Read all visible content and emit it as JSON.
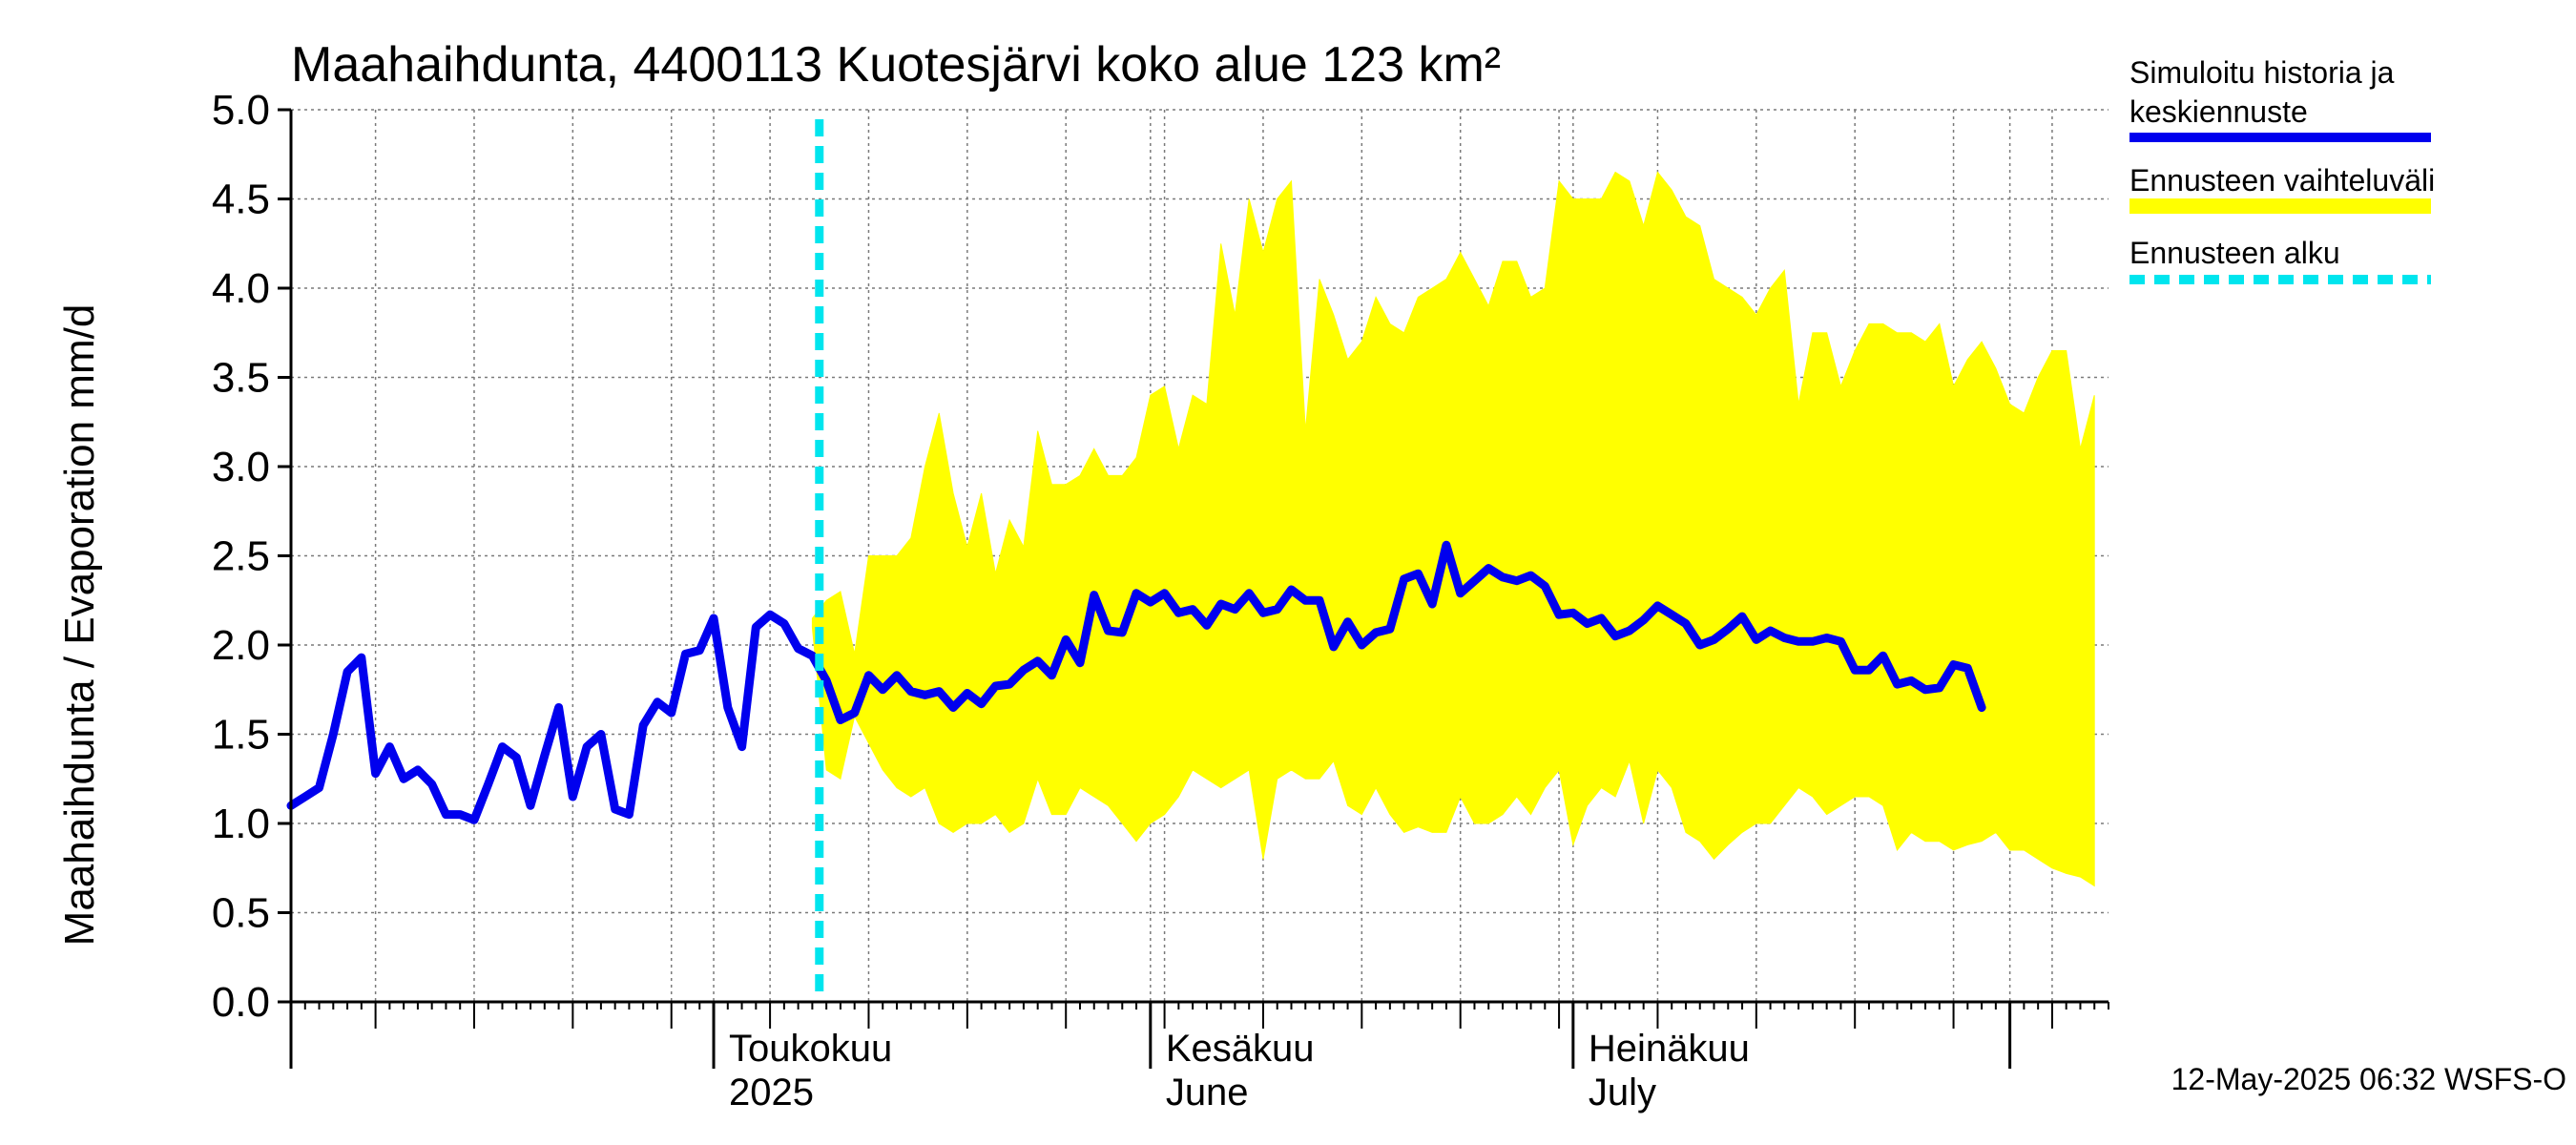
{
  "chart_data": {
    "type": "area",
    "title": "Maahaihdunta, 4400113 Kuotesjärvi koko alue 123 km²",
    "ylabel": "Maahaihdunta / Evaporation   mm/d",
    "ylim": [
      0,
      5
    ],
    "yticks": [
      "0.0",
      "0.5",
      "1.0",
      "1.5",
      "2.0",
      "2.5",
      "3.0",
      "3.5",
      "4.0",
      "4.5",
      "5.0"
    ],
    "xlim": [
      "2025-04-01",
      "2025-08-08"
    ],
    "month_labels": [
      {
        "date": "2025-05-01",
        "line1": "Toukokuu",
        "line2": "2025"
      },
      {
        "date": "2025-06-01",
        "line1": "Kesäkuu",
        "line2": "June"
      },
      {
        "date": "2025-07-01",
        "line1": "Heinäkuu",
        "line2": "July"
      }
    ],
    "forecast_start": "2025-05-08",
    "series": [
      {
        "name": "Simuloitu historia ja keskiennuste",
        "color": "#0000ee",
        "start": "2025-04-01",
        "values": [
          1.1,
          1.15,
          1.2,
          1.5,
          1.85,
          1.93,
          1.28,
          1.43,
          1.25,
          1.3,
          1.22,
          1.05,
          1.05,
          1.02,
          1.22,
          1.43,
          1.37,
          1.1,
          1.38,
          1.65,
          1.15,
          1.43,
          1.5,
          1.08,
          1.05,
          1.55,
          1.68,
          1.62,
          1.95,
          1.97,
          2.15,
          1.65,
          1.43,
          2.1,
          2.17,
          2.12,
          1.98,
          1.94,
          1.8,
          1.58,
          1.62,
          1.83,
          1.75,
          1.83,
          1.74,
          1.72,
          1.74,
          1.65,
          1.73,
          1.67,
          1.77,
          1.78,
          1.86,
          1.91,
          1.83,
          2.03,
          1.9,
          2.28,
          2.08,
          2.07,
          2.29,
          2.24,
          2.29,
          2.18,
          2.2,
          2.11,
          2.23,
          2.2,
          2.29,
          2.18,
          2.2,
          2.31,
          2.25,
          2.25,
          1.99,
          2.13,
          2.0,
          2.07,
          2.09,
          2.37,
          2.4,
          2.23,
          2.56,
          2.29,
          2.36,
          2.43,
          2.38,
          2.36,
          2.39,
          2.33,
          2.17,
          2.18,
          2.12,
          2.15,
          2.05,
          2.08,
          2.14,
          2.22,
          2.17,
          2.12,
          2.0,
          2.03,
          2.09,
          2.16,
          2.03,
          2.08,
          2.04,
          2.02,
          2.02,
          2.04,
          2.02,
          1.86,
          1.86,
          1.94,
          1.78,
          1.8,
          1.75,
          1.76,
          1.89,
          1.87,
          1.65
        ]
      }
    ],
    "band": {
      "name": "Ennusteen vaihteluväli",
      "color": "#ffff00",
      "start": "2025-05-08",
      "upper": [
        2.15,
        2.25,
        2.3,
        1.95,
        2.5,
        2.5,
        2.5,
        2.6,
        3.0,
        3.3,
        2.85,
        2.55,
        2.85,
        2.4,
        2.7,
        2.55,
        3.2,
        2.9,
        2.9,
        2.95,
        3.1,
        2.95,
        2.95,
        3.05,
        3.4,
        3.45,
        3.1,
        3.4,
        3.35,
        4.25,
        3.85,
        4.5,
        4.2,
        4.5,
        4.6,
        3.2,
        4.05,
        3.85,
        3.6,
        3.7,
        3.95,
        3.8,
        3.75,
        3.95,
        4.0,
        4.05,
        4.2,
        4.05,
        3.9,
        4.15,
        4.15,
        3.95,
        4.0,
        4.6,
        4.5,
        4.5,
        4.5,
        4.65,
        4.6,
        4.35,
        4.65,
        4.55,
        4.4,
        4.35,
        4.05,
        4.0,
        3.95,
        3.85,
        4.0,
        4.1,
        3.35,
        3.75,
        3.75,
        3.45,
        3.65,
        3.8,
        3.8,
        3.75,
        3.75,
        3.7,
        3.8,
        3.45,
        3.6,
        3.7,
        3.55,
        3.35,
        3.3,
        3.5,
        3.65,
        3.65,
        3.1,
        3.4
      ],
      "lower": [
        2.1,
        1.3,
        1.25,
        1.6,
        1.45,
        1.3,
        1.2,
        1.15,
        1.2,
        1.0,
        0.95,
        1.0,
        1.0,
        1.05,
        0.95,
        1.0,
        1.25,
        1.05,
        1.05,
        1.2,
        1.15,
        1.1,
        1.0,
        0.9,
        1.0,
        1.05,
        1.15,
        1.3,
        1.25,
        1.2,
        1.25,
        1.3,
        0.8,
        1.25,
        1.3,
        1.25,
        1.25,
        1.35,
        1.1,
        1.05,
        1.2,
        1.05,
        0.95,
        0.98,
        0.95,
        0.95,
        1.15,
        1.0,
        1.0,
        1.05,
        1.15,
        1.05,
        1.2,
        1.3,
        0.88,
        1.1,
        1.2,
        1.15,
        1.35,
        1.0,
        1.3,
        1.2,
        0.95,
        0.9,
        0.8,
        0.88,
        0.95,
        1.0,
        1.0,
        1.1,
        1.2,
        1.15,
        1.05,
        1.1,
        1.15,
        1.15,
        1.1,
        0.85,
        0.95,
        0.9,
        0.9,
        0.85,
        0.88,
        0.9,
        0.95,
        0.85,
        0.85,
        0.8,
        0.75,
        0.72,
        0.7,
        0.65
      ]
    },
    "legend": [
      {
        "label": "Simuloitu historia ja",
        "label2": "keskiennuste",
        "color": "#0000ee",
        "style": "solid"
      },
      {
        "label": "Ennusteen vaihteluväli",
        "label2": "",
        "color": "#ffff00",
        "style": "solid"
      },
      {
        "label": "Ennusteen alku",
        "label2": "",
        "color": "#00e5ee",
        "style": "dashed"
      }
    ],
    "legend_position": "right",
    "grid": true
  },
  "timestamp": "12-May-2025 06:32 WSFS-O"
}
